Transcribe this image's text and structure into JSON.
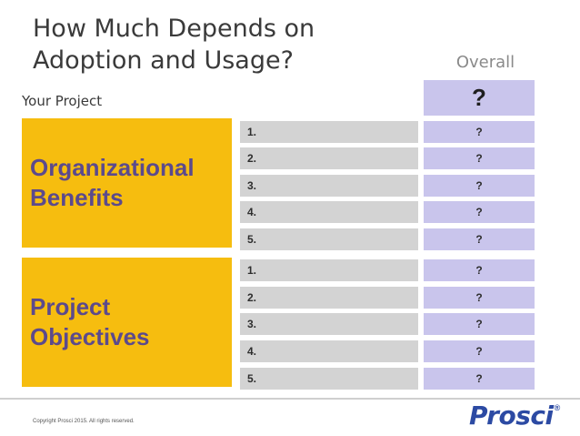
{
  "slide": {
    "title": "How Much Depends on\nAdoption and Usage?",
    "overall_label": "Overall",
    "your_project_label": "Your Project",
    "overall_value": "?"
  },
  "sections": [
    {
      "label": "Organizational\nBenefits",
      "rows": [
        {
          "num": "1.",
          "value": "?"
        },
        {
          "num": "2.",
          "value": "?"
        },
        {
          "num": "3.",
          "value": "?"
        },
        {
          "num": "4.",
          "value": "?"
        },
        {
          "num": "5.",
          "value": "?"
        }
      ]
    },
    {
      "label": "Project\nObjectives",
      "rows": [
        {
          "num": "1.",
          "value": "?"
        },
        {
          "num": "2.",
          "value": "?"
        },
        {
          "num": "3.",
          "value": "?"
        },
        {
          "num": "4.",
          "value": "?"
        },
        {
          "num": "5.",
          "value": "?"
        }
      ]
    }
  ],
  "footer": {
    "copyright": "Copyright Prosci 2015. All rights reserved.",
    "logo_text": "Prosci",
    "logo_mark": "®"
  }
}
